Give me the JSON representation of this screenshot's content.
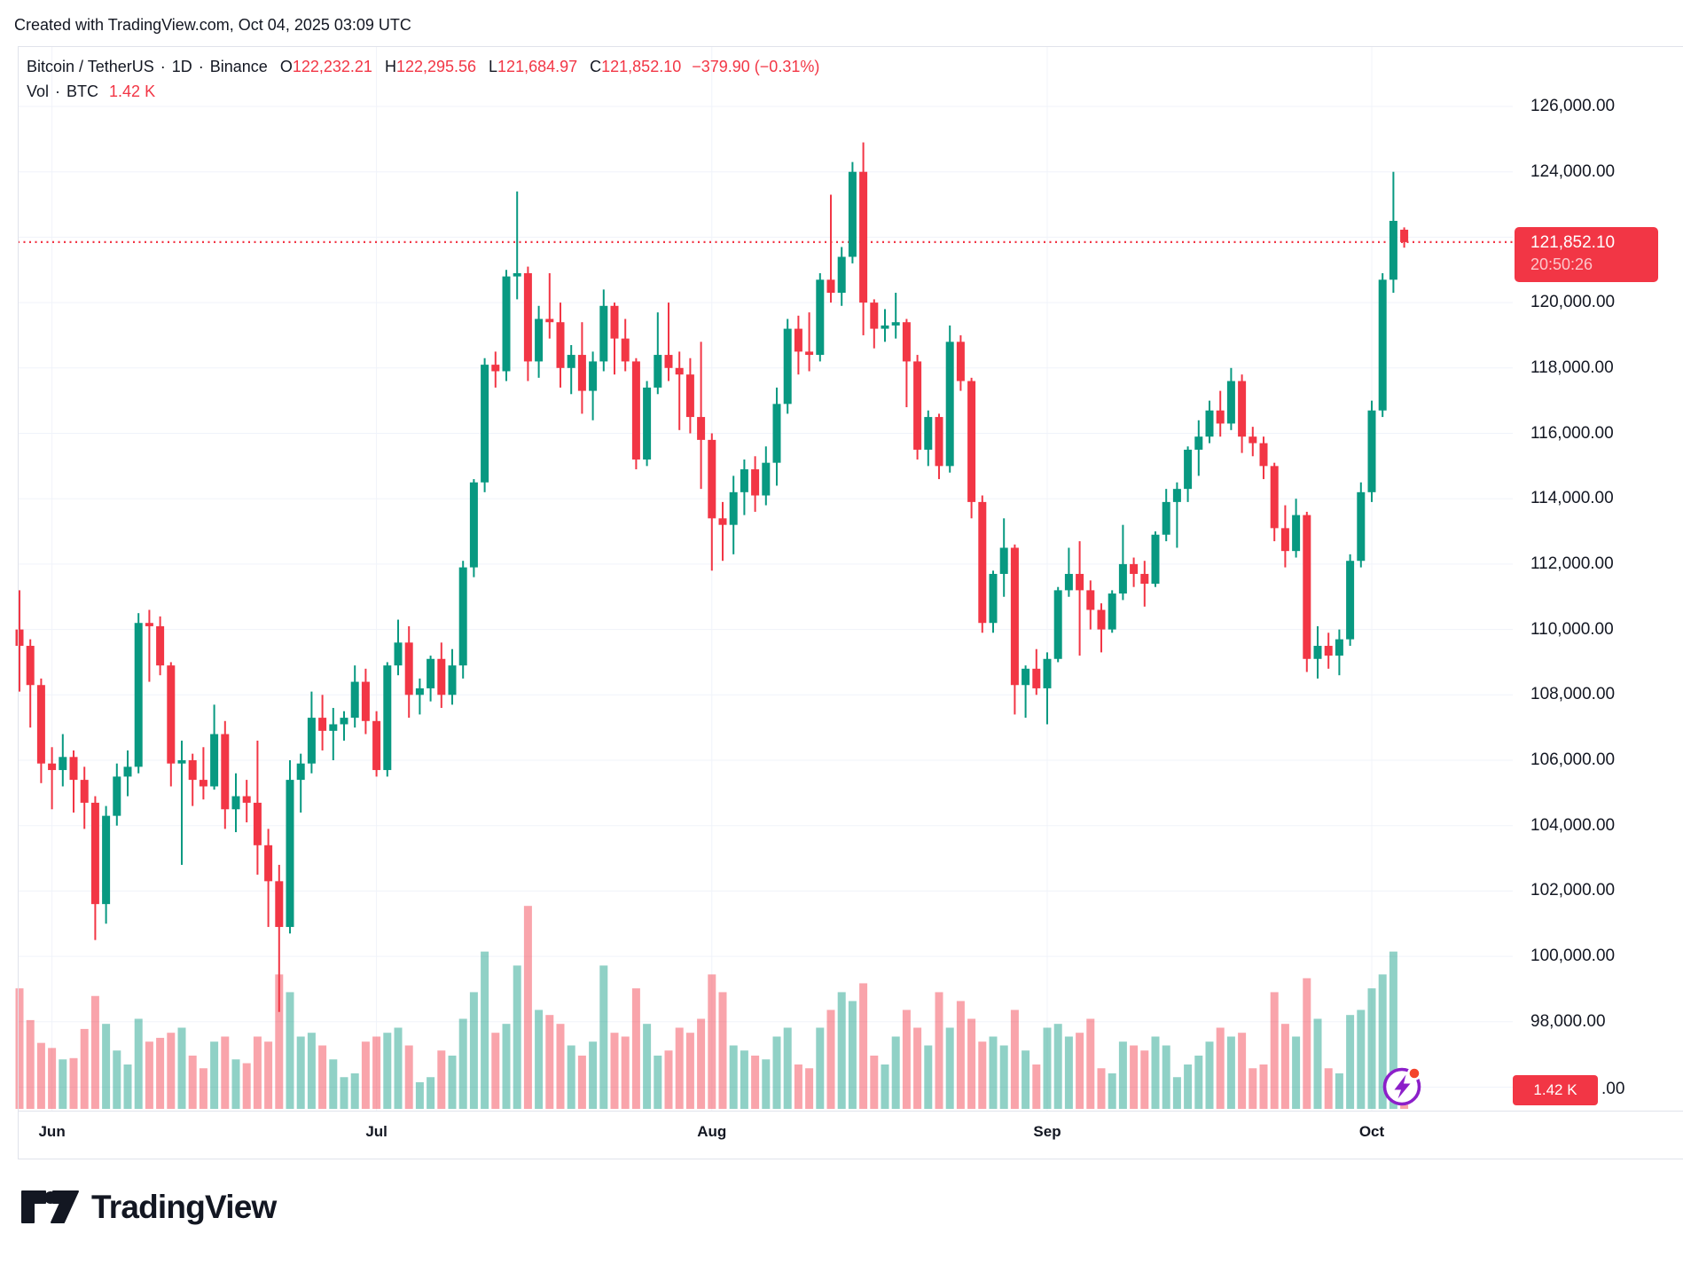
{
  "header": {
    "credit": "Created with TradingView.com, Oct 04, 2025 03:09 UTC"
  },
  "legend": {
    "symbol": "Bitcoin / TetherUS",
    "separator": "·",
    "resolution": "1D",
    "exchange": "Binance",
    "o_label": "O",
    "o_value": "122,232.21",
    "h_label": "H",
    "h_value": "122,295.56",
    "l_label": "L",
    "l_value": "121,684.97",
    "c_label": "C",
    "c_value": "121,852.10",
    "change": "−379.90 (−0.31%)",
    "vol_label": "Vol",
    "vol_unit": "BTC",
    "vol_value": "1.42 K"
  },
  "price_axis": {
    "labels": [
      {
        "k": 126,
        "text": "126,000.00"
      },
      {
        "k": 124,
        "text": "124,000.00"
      },
      {
        "k": 120,
        "text": "120,000.00"
      },
      {
        "k": 118,
        "text": "118,000.00"
      },
      {
        "k": 116,
        "text": "116,000.00"
      },
      {
        "k": 114,
        "text": "114,000.00"
      },
      {
        "k": 112,
        "text": "112,000.00"
      },
      {
        "k": 110,
        "text": "110,000.00"
      },
      {
        "k": 108,
        "text": "108,000.00"
      },
      {
        "k": 106,
        "text": "106,000.00"
      },
      {
        "k": 104,
        "text": "104,000.00"
      },
      {
        "k": 102,
        "text": "102,000.00"
      },
      {
        "k": 100,
        "text": "100,000.00"
      },
      {
        "k": 98,
        "text": "98,000.00"
      }
    ],
    "current": {
      "text": "121,852.10",
      "countdown": "20:50:26"
    },
    "volume_badge": {
      "text": "1.42 K",
      "suffix": ".00"
    }
  },
  "time_axis": {
    "months": [
      {
        "label": "Jun",
        "candle_index": 3
      },
      {
        "label": "Jul",
        "candle_index": 33
      },
      {
        "label": "Aug",
        "candle_index": 64
      },
      {
        "label": "Sep",
        "candle_index": 95
      },
      {
        "label": "Oct",
        "candle_index": 125
      }
    ]
  },
  "branding": {
    "logo_text": "TradingView"
  },
  "colors": {
    "up": "#089981",
    "down": "#F23645",
    "volume_up": "rgba(8,153,129,0.45)",
    "volume_down": "rgba(242,54,69,0.45)",
    "grid": "#f0f3fa",
    "border": "#e0e3eb",
    "text": "#131722",
    "badge": "#F23645",
    "dotted_line": "#F23645",
    "icon_purple": "#8C1FC9",
    "icon_dot": "#F4432C"
  },
  "chart_data": {
    "type": "candlestick",
    "title": "Bitcoin / TetherUS · 1D · Binance",
    "unit": "USDT, values in thousands",
    "volume_unit": "K BTC",
    "current_price_k": 121.8521,
    "last_volume_k": 1.42,
    "y_axis": {
      "min_k": 96,
      "max_k": 126,
      "grid_step_k": 2
    },
    "x_axis_months": [
      "Jun",
      "Jul",
      "Aug",
      "Sep",
      "Oct"
    ],
    "candles": [
      [
        110.0,
        111.2,
        108.1,
        109.5
      ],
      [
        109.5,
        109.7,
        107.0,
        108.3
      ],
      [
        108.3,
        108.5,
        105.3,
        105.9
      ],
      [
        105.9,
        106.4,
        104.5,
        105.7
      ],
      [
        105.7,
        106.8,
        105.2,
        106.1
      ],
      [
        106.1,
        106.3,
        104.4,
        105.4
      ],
      [
        105.4,
        105.8,
        103.9,
        104.7
      ],
      [
        104.7,
        104.9,
        100.5,
        101.6
      ],
      [
        101.6,
        104.6,
        101.0,
        104.3
      ],
      [
        104.3,
        105.9,
        104.0,
        105.5
      ],
      [
        105.5,
        106.3,
        104.9,
        105.8
      ],
      [
        105.8,
        110.5,
        105.6,
        110.2
      ],
      [
        110.2,
        110.6,
        108.4,
        110.1
      ],
      [
        110.1,
        110.4,
        108.6,
        108.9
      ],
      [
        108.9,
        109.0,
        105.2,
        105.9
      ],
      [
        105.9,
        106.6,
        102.8,
        106.0
      ],
      [
        106.0,
        106.2,
        104.6,
        105.4
      ],
      [
        105.4,
        106.4,
        104.8,
        105.2
      ],
      [
        105.2,
        107.7,
        105.1,
        106.8
      ],
      [
        106.8,
        107.2,
        103.9,
        104.5
      ],
      [
        104.5,
        105.6,
        103.8,
        104.9
      ],
      [
        104.9,
        105.4,
        104.1,
        104.7
      ],
      [
        104.7,
        106.6,
        102.5,
        103.4
      ],
      [
        103.4,
        103.9,
        100.9,
        102.3
      ],
      [
        102.3,
        102.8,
        98.3,
        100.9
      ],
      [
        100.9,
        106.0,
        100.7,
        105.4
      ],
      [
        105.4,
        106.2,
        104.4,
        105.9
      ],
      [
        105.9,
        108.1,
        105.6,
        107.3
      ],
      [
        107.3,
        108.0,
        106.3,
        106.9
      ],
      [
        106.9,
        107.6,
        106.0,
        107.1
      ],
      [
        107.1,
        107.5,
        106.6,
        107.3
      ],
      [
        107.3,
        108.9,
        107.0,
        108.4
      ],
      [
        108.4,
        108.8,
        106.8,
        107.2
      ],
      [
        107.2,
        107.5,
        105.5,
        105.7
      ],
      [
        105.7,
        109.0,
        105.5,
        108.9
      ],
      [
        108.9,
        110.3,
        108.6,
        109.6
      ],
      [
        109.6,
        110.1,
        107.3,
        108.0
      ],
      [
        108.0,
        108.5,
        107.4,
        108.2
      ],
      [
        108.2,
        109.2,
        107.8,
        109.1
      ],
      [
        109.1,
        109.6,
        107.6,
        108.0
      ],
      [
        108.0,
        109.4,
        107.7,
        108.9
      ],
      [
        108.9,
        112.1,
        108.5,
        111.9
      ],
      [
        111.9,
        114.6,
        111.6,
        114.5
      ],
      [
        114.5,
        118.3,
        114.2,
        118.1
      ],
      [
        118.1,
        118.5,
        117.4,
        117.9
      ],
      [
        117.9,
        121.0,
        117.6,
        120.8
      ],
      [
        120.8,
        123.4,
        120.1,
        120.9
      ],
      [
        120.9,
        121.1,
        117.6,
        118.2
      ],
      [
        118.2,
        119.9,
        117.7,
        119.5
      ],
      [
        119.5,
        120.9,
        118.9,
        119.4
      ],
      [
        119.4,
        120.0,
        117.4,
        118.0
      ],
      [
        118.0,
        118.7,
        117.2,
        118.4
      ],
      [
        118.4,
        119.4,
        116.6,
        117.3
      ],
      [
        117.3,
        118.5,
        116.4,
        118.2
      ],
      [
        118.2,
        120.4,
        117.9,
        119.9
      ],
      [
        119.9,
        120.0,
        117.8,
        118.9
      ],
      [
        118.9,
        119.5,
        117.9,
        118.2
      ],
      [
        118.2,
        118.3,
        114.9,
        115.2
      ],
      [
        115.2,
        117.6,
        115.0,
        117.4
      ],
      [
        117.4,
        119.7,
        117.2,
        118.4
      ],
      [
        118.4,
        120.0,
        117.6,
        118.0
      ],
      [
        118.0,
        118.5,
        116.1,
        117.8
      ],
      [
        117.8,
        118.3,
        116.0,
        116.5
      ],
      [
        116.5,
        118.8,
        114.3,
        115.8
      ],
      [
        115.8,
        116.0,
        111.8,
        113.4
      ],
      [
        113.4,
        113.9,
        112.1,
        113.2
      ],
      [
        113.2,
        114.7,
        112.3,
        114.2
      ],
      [
        114.2,
        115.2,
        113.5,
        114.9
      ],
      [
        114.9,
        115.3,
        113.6,
        114.1
      ],
      [
        114.1,
        115.6,
        113.8,
        115.1
      ],
      [
        115.1,
        117.4,
        114.4,
        116.9
      ],
      [
        116.9,
        119.5,
        116.6,
        119.2
      ],
      [
        119.2,
        119.6,
        117.8,
        118.5
      ],
      [
        118.5,
        119.7,
        117.9,
        118.4
      ],
      [
        118.4,
        120.9,
        118.2,
        120.7
      ],
      [
        120.7,
        123.3,
        120.0,
        120.3
      ],
      [
        120.3,
        121.7,
        119.9,
        121.4
      ],
      [
        121.4,
        124.3,
        121.2,
        124.0
      ],
      [
        124.0,
        124.9,
        119.0,
        120.0
      ],
      [
        120.0,
        120.1,
        118.6,
        119.2
      ],
      [
        119.2,
        119.8,
        118.8,
        119.3
      ],
      [
        119.3,
        120.3,
        118.9,
        119.4
      ],
      [
        119.4,
        119.5,
        116.8,
        118.2
      ],
      [
        118.2,
        118.4,
        115.2,
        115.5
      ],
      [
        115.5,
        116.7,
        115.0,
        116.5
      ],
      [
        116.5,
        116.6,
        114.6,
        115.0
      ],
      [
        115.0,
        119.3,
        114.8,
        118.8
      ],
      [
        118.8,
        119.0,
        117.3,
        117.6
      ],
      [
        117.6,
        117.7,
        113.4,
        113.9
      ],
      [
        113.9,
        114.1,
        109.9,
        110.2
      ],
      [
        110.2,
        111.8,
        109.9,
        111.7
      ],
      [
        111.7,
        113.4,
        111.0,
        112.5
      ],
      [
        112.5,
        112.6,
        107.4,
        108.3
      ],
      [
        108.3,
        108.9,
        107.3,
        108.8
      ],
      [
        108.8,
        109.4,
        108.0,
        108.2
      ],
      [
        108.2,
        109.3,
        107.1,
        109.1
      ],
      [
        109.1,
        111.3,
        109.0,
        111.2
      ],
      [
        111.2,
        112.5,
        111.0,
        111.7
      ],
      [
        111.7,
        112.7,
        109.2,
        111.2
      ],
      [
        111.2,
        111.5,
        110.0,
        110.6
      ],
      [
        110.6,
        110.8,
        109.3,
        110.0
      ],
      [
        110.0,
        111.2,
        109.9,
        111.1
      ],
      [
        111.1,
        113.2,
        110.9,
        112.0
      ],
      [
        112.0,
        112.2,
        111.3,
        111.7
      ],
      [
        111.7,
        112.1,
        110.7,
        111.4
      ],
      [
        111.4,
        113.0,
        111.3,
        112.9
      ],
      [
        112.9,
        114.3,
        112.7,
        113.9
      ],
      [
        113.9,
        114.5,
        112.5,
        114.3
      ],
      [
        114.3,
        115.6,
        113.9,
        115.5
      ],
      [
        115.5,
        116.4,
        114.7,
        115.9
      ],
      [
        115.9,
        117.0,
        115.7,
        116.7
      ],
      [
        116.7,
        117.3,
        115.9,
        116.3
      ],
      [
        116.3,
        118.0,
        116.1,
        117.6
      ],
      [
        117.6,
        117.8,
        115.4,
        115.9
      ],
      [
        115.9,
        116.2,
        115.3,
        115.7
      ],
      [
        115.7,
        115.9,
        114.6,
        115.0
      ],
      [
        115.0,
        115.1,
        112.7,
        113.1
      ],
      [
        113.1,
        113.8,
        111.9,
        112.4
      ],
      [
        112.4,
        114.0,
        112.2,
        113.5
      ],
      [
        113.5,
        113.6,
        108.7,
        109.1
      ],
      [
        109.1,
        110.1,
        108.5,
        109.5
      ],
      [
        109.5,
        109.9,
        108.8,
        109.2
      ],
      [
        109.2,
        110.0,
        108.6,
        109.7
      ],
      [
        109.7,
        112.3,
        109.5,
        112.1
      ],
      [
        112.1,
        114.5,
        111.9,
        114.2
      ],
      [
        114.2,
        117.0,
        113.9,
        116.7
      ],
      [
        116.7,
        120.9,
        116.5,
        120.7
      ],
      [
        120.7,
        124.0,
        120.3,
        122.5
      ],
      [
        122.23,
        122.3,
        121.68,
        121.85
      ]
    ],
    "volumes": [
      9.5,
      7.0,
      5.2,
      4.8,
      3.9,
      4.0,
      6.3,
      8.9,
      6.7,
      4.6,
      3.5,
      7.1,
      5.3,
      5.6,
      6.0,
      6.4,
      4.2,
      3.2,
      5.3,
      5.7,
      3.9,
      3.6,
      5.7,
      5.3,
      10.6,
      9.2,
      5.7,
      6.0,
      5.0,
      3.9,
      2.5,
      2.8,
      5.3,
      5.7,
      6.0,
      6.4,
      5.0,
      2.1,
      2.5,
      4.6,
      4.2,
      7.1,
      9.2,
      12.4,
      6.0,
      6.7,
      11.3,
      16.0,
      7.8,
      7.4,
      6.7,
      5.0,
      4.2,
      5.3,
      11.3,
      6.0,
      5.7,
      9.5,
      6.7,
      4.2,
      4.6,
      6.4,
      6.0,
      7.1,
      10.6,
      9.2,
      5.0,
      4.6,
      4.2,
      3.9,
      5.7,
      6.4,
      3.5,
      3.2,
      6.4,
      7.8,
      9.2,
      8.5,
      9.9,
      4.2,
      3.5,
      5.7,
      7.8,
      6.4,
      5.0,
      9.2,
      6.4,
      8.5,
      7.1,
      5.3,
      5.7,
      5.0,
      7.8,
      4.6,
      3.5,
      6.4,
      6.7,
      5.7,
      6.0,
      7.1,
      3.2,
      2.8,
      5.3,
      5.0,
      4.6,
      5.7,
      5.0,
      2.5,
      3.5,
      4.2,
      5.3,
      6.4,
      5.7,
      6.0,
      3.2,
      3.5,
      9.2,
      6.7,
      5.7,
      10.3,
      7.1,
      3.2,
      2.8,
      7.4,
      7.8,
      9.5,
      10.6,
      12.4,
      1.42
    ]
  }
}
